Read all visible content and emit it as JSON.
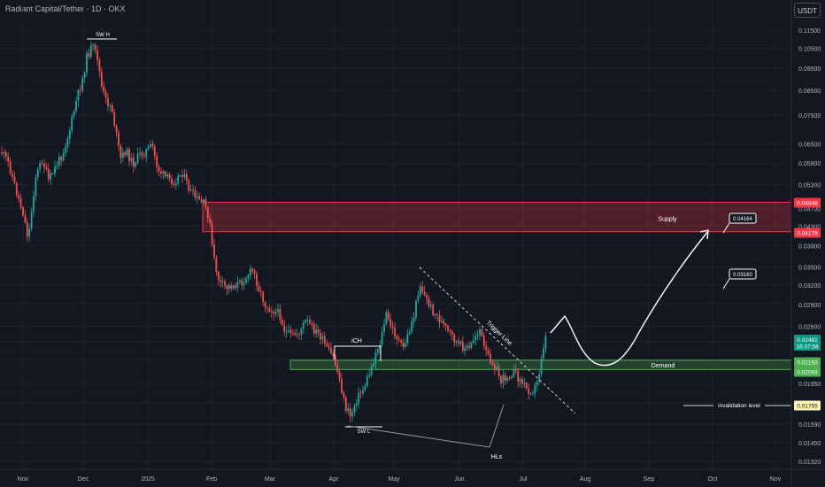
{
  "header": {
    "title": "Radiant Capital/Tether · 1D · OKX",
    "currency": "USDT"
  },
  "chart_data": {
    "type": "candlestick",
    "x_ticks": [
      "Nov",
      "Dec",
      "2025",
      "Feb",
      "Mar",
      "Apr",
      "May",
      "Jun",
      "Jul",
      "Aug",
      "Sep",
      "Oct",
      "Nov"
    ],
    "y_ticks": [
      "0.11500",
      "0.10500",
      "0.09500",
      "0.08500",
      "0.07500",
      "0.06500",
      "0.05900",
      "0.05300",
      "0.04700",
      "0.04300",
      "0.03900",
      "0.03500",
      "0.03200",
      "0.02900",
      "0.02600",
      "0.02400",
      "0.02200",
      "0.01950",
      "0.01770",
      "0.01590",
      "0.01450",
      "0.01320"
    ],
    "y_range": [
      0.0125,
      0.125
    ],
    "log_scale": true,
    "grid": true,
    "price_badges": [
      {
        "label": "0.04848",
        "color": "#f23645"
      },
      {
        "label": "0.04179",
        "color": "#f23645"
      },
      {
        "label": "0.02481",
        "sublabel": "16:37:58",
        "color": "#089981"
      },
      {
        "label": "0.02193",
        "color": "#4caf50"
      },
      {
        "label": "0.02093",
        "color": "#4caf50"
      },
      {
        "label": "0.01755",
        "color": "#fff3b0",
        "text_color": "#131722"
      }
    ],
    "zones": [
      {
        "name": "supply",
        "label": "Supply",
        "top": 0.04848,
        "bottom": 0.04179,
        "fill": "#f23645"
      },
      {
        "name": "demand",
        "label": "Demand",
        "top": 0.02193,
        "bottom": 0.02093,
        "fill": "#4caf50"
      }
    ],
    "annotations": {
      "swing_high": "SW H",
      "swing_low": "SW L",
      "ich": "iCH",
      "trigger_line": "Trigger Line",
      "higher_lows": "HLs",
      "invalidation": "invalidation level"
    },
    "targets": [
      "0.04164",
      "0.03160"
    ],
    "colors": {
      "up": "#26a69a",
      "down": "#ef5350"
    }
  }
}
